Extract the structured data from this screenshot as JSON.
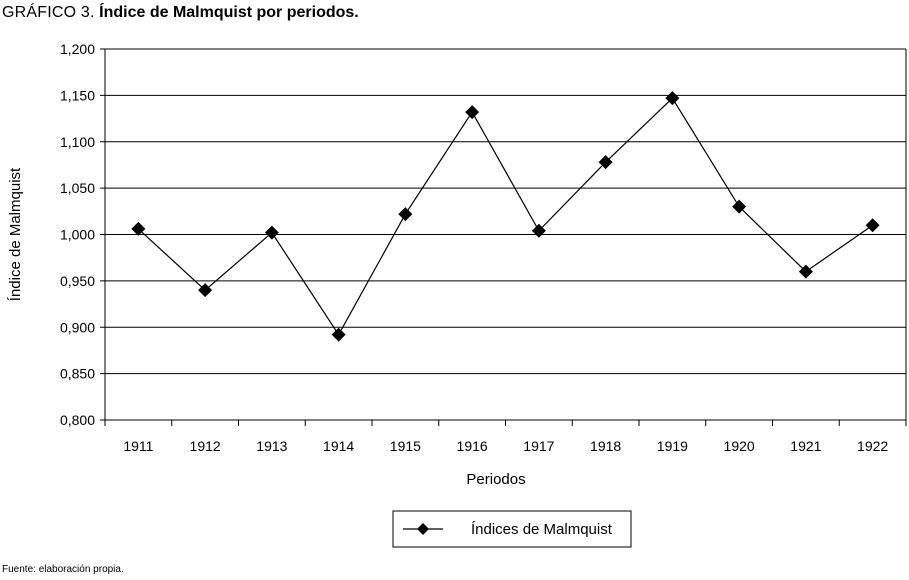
{
  "figure": {
    "label": "GRÁFICO 3.",
    "title": "Índice de Malmquist por periodos.",
    "source": "Fuente: elaboración propia."
  },
  "chart_data": {
    "type": "line",
    "xlabel": "Periodos",
    "ylabel": "Índice de Malmquist",
    "categories": [
      "1911",
      "1912",
      "1913",
      "1914",
      "1915",
      "1916",
      "1917",
      "1918",
      "1919",
      "1920",
      "1921",
      "1922"
    ],
    "series": [
      {
        "name": "Índices de Malmquist",
        "values": [
          1.006,
          0.94,
          1.002,
          0.892,
          1.022,
          1.132,
          1.004,
          1.078,
          1.147,
          1.03,
          0.96,
          1.01
        ],
        "color": "#000000",
        "marker": "diamond"
      }
    ],
    "ylim": [
      0.8,
      1.2
    ],
    "yticks": [
      0.8,
      0.85,
      0.9,
      0.95,
      1.0,
      1.05,
      1.1,
      1.15,
      1.2
    ],
    "ytick_labels": [
      "0,800",
      "0,850",
      "0,900",
      "0,950",
      "1,000",
      "1,050",
      "1,100",
      "1,150",
      "1,200"
    ],
    "grid": "horizontal",
    "legend_position": "bottom-center"
  }
}
